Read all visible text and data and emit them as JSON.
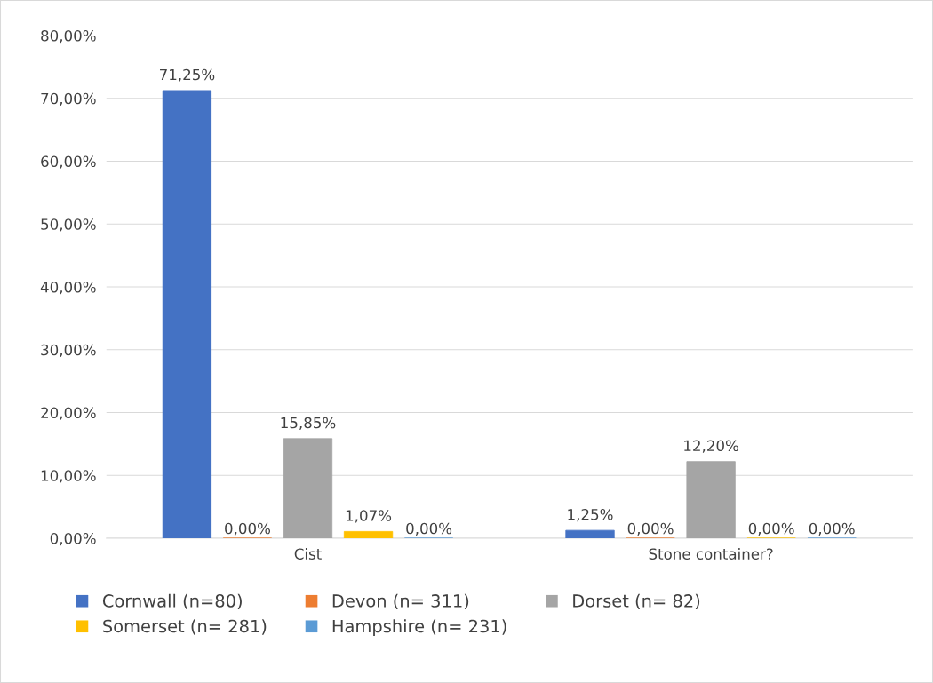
{
  "chart_data": {
    "type": "bar",
    "categories": [
      "Cist",
      "Stone container?"
    ],
    "series": [
      {
        "name": "Cornwall (n=80)",
        "color": "#4472c4",
        "values": [
          71.25,
          1.25
        ],
        "value_labels": [
          "71,25%",
          "1,25%"
        ]
      },
      {
        "name": "Devon (n= 311)",
        "color": "#ed7d31",
        "values": [
          0,
          0
        ],
        "value_labels": [
          "0,00%",
          "0,00%"
        ]
      },
      {
        "name": "Dorset (n= 82)",
        "color": "#a5a5a5",
        "values": [
          15.85,
          12.2
        ],
        "value_labels": [
          "15,85%",
          "12,20%"
        ]
      },
      {
        "name": "Somerset (n= 281)",
        "color": "#ffc000",
        "values": [
          1.07,
          0
        ],
        "value_labels": [
          "1,07%",
          "0,00%"
        ]
      },
      {
        "name": "Hampshire (n= 231)",
        "color": "#5b9bd5",
        "values": [
          0,
          0
        ],
        "value_labels": [
          "0,00%",
          "0,00%"
        ]
      }
    ],
    "ylim": [
      0,
      80
    ],
    "yticks": [
      {
        "value": 0,
        "label": "0,00%"
      },
      {
        "value": 10,
        "label": "10,00%"
      },
      {
        "value": 20,
        "label": "20,00%"
      },
      {
        "value": 30,
        "label": "30,00%"
      },
      {
        "value": 40,
        "label": "40,00%"
      },
      {
        "value": 50,
        "label": "50,00%"
      },
      {
        "value": 60,
        "label": "60,00%"
      },
      {
        "value": 70,
        "label": "70,00%"
      },
      {
        "value": 80,
        "label": "80,00%"
      }
    ],
    "grid": "y",
    "legend": "bottom"
  }
}
